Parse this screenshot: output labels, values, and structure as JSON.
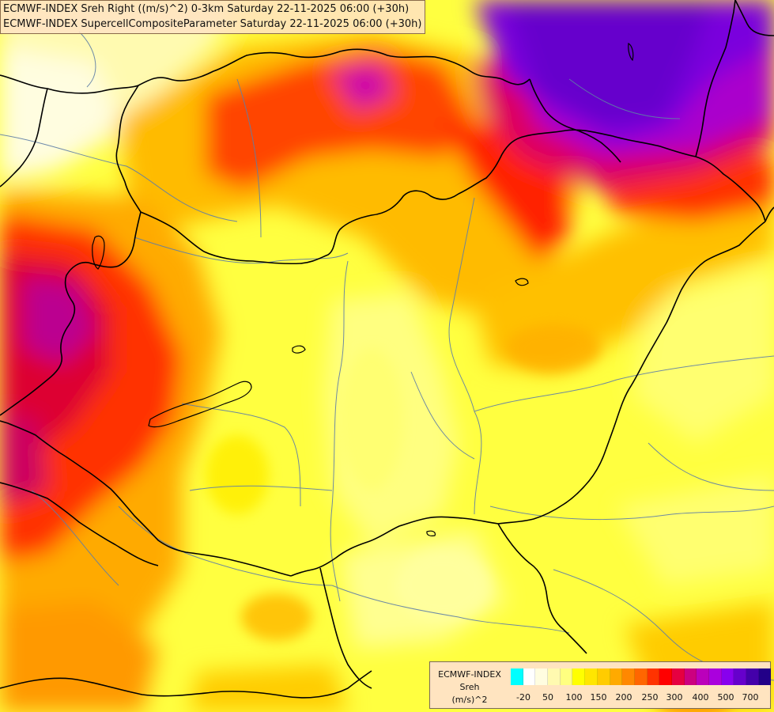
{
  "map": {
    "title_line_1": "ECMWF-INDEX Sreh Right ((m/s)^2) 0-3km Saturday 22-11-2025 06:00 (+30h)",
    "title_line_2": "ECMWF-INDEX SupercellCompositeParameter Saturday 22-11-2025 06:00 (+30h)"
  },
  "legend": {
    "name_line_1": "ECMWF-INDEX",
    "name_line_2": "Sreh",
    "unit": "(m/s)^2",
    "tick_labels": [
      "-20",
      "50",
      "100",
      "150",
      "200",
      "250",
      "300",
      "400",
      "500",
      "700"
    ],
    "colors": [
      "#00ffff",
      "#ffffff",
      "#fffde0",
      "#fffab0",
      "#ffff80",
      "#ffff00",
      "#ffe600",
      "#ffcc00",
      "#ffaa00",
      "#ff8800",
      "#ff6600",
      "#ff3300",
      "#ff0000",
      "#e60040",
      "#cc0080",
      "#bb00bb",
      "#aa00dd",
      "#8800ee",
      "#6600cc",
      "#4400aa",
      "#220088"
    ]
  }
}
